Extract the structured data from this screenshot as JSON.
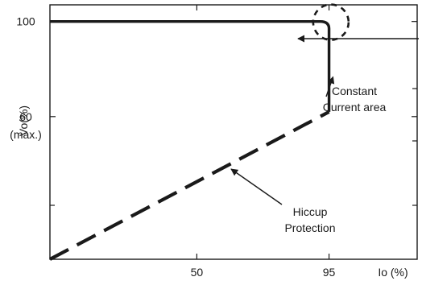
{
  "chart_data": {
    "type": "line",
    "title": "",
    "xlabel": "Io (%)",
    "ylabel": "Vo(%)",
    "xlim": [
      0,
      125
    ],
    "ylim": [
      0,
      107
    ],
    "x_ticks": [
      {
        "value": 50,
        "label": "50"
      },
      {
        "value": 95,
        "label": "95"
      }
    ],
    "y_ticks": [
      {
        "value": 100,
        "label": "100"
      },
      {
        "value": 60,
        "label": "60",
        "label2": "(max.)"
      }
    ],
    "series": [
      {
        "style": "solid",
        "points": [
          [
            0,
            100
          ],
          [
            92,
            100
          ],
          [
            95,
            97
          ],
          [
            95,
            62
          ]
        ]
      },
      {
        "style": "dashed",
        "points": [
          [
            0,
            0
          ],
          [
            95,
            62
          ]
        ]
      }
    ],
    "annotations": [
      {
        "text_lines": [
          "Constant",
          "Current area"
        ],
        "target": [
          95,
          75
        ]
      },
      {
        "text_lines": [
          "Hiccup",
          "Protection"
        ],
        "target": [
          61,
          40
        ]
      },
      {
        "text_lines": [],
        "target": [
          97,
          98
        ],
        "marker": "dashed-circle"
      }
    ],
    "grid": false,
    "legend": "none"
  }
}
